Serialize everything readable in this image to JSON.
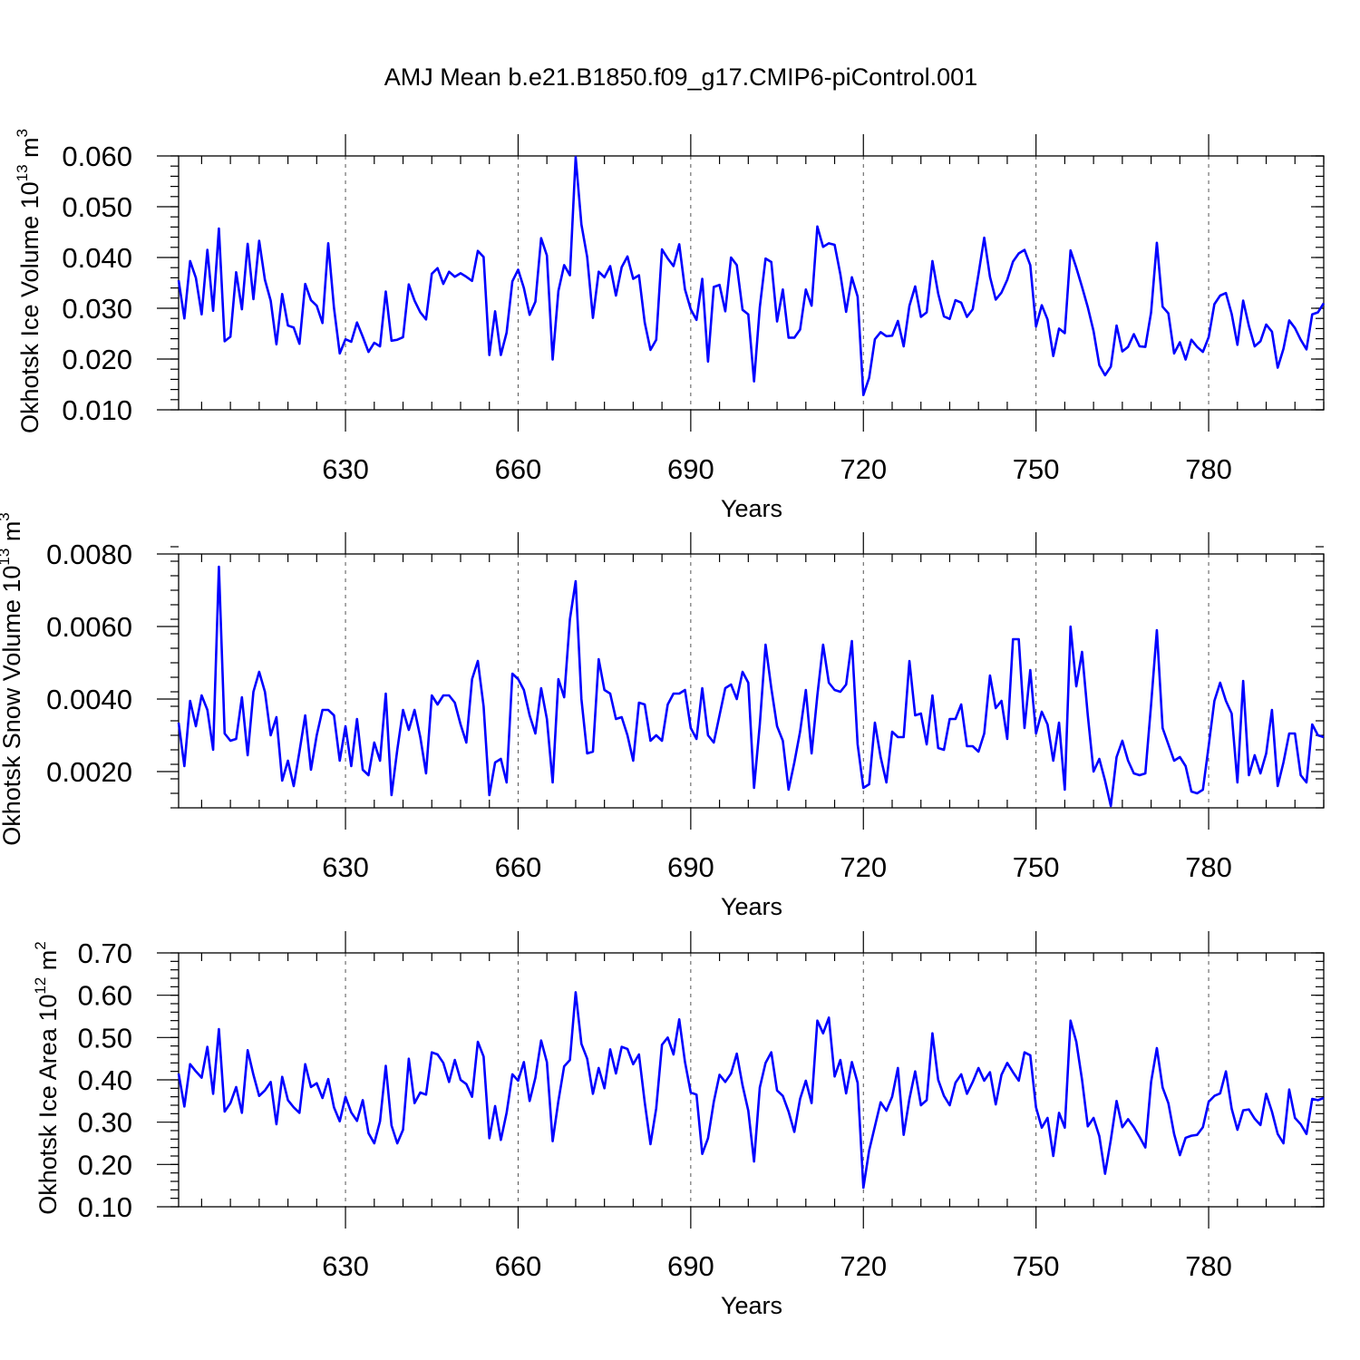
{
  "figure": {
    "title": "AMJ Mean b.e21.B1850.f09_g17.CMIP6-piControl.001"
  },
  "chart_data": [
    {
      "type": "line",
      "title": "AMJ Mean b.e21.B1850.f09_g17.CMIP6-piControl.001",
      "xlabel": "Years",
      "ylabel": {
        "main": "Okhotsk Ice Volume 10",
        "exp": "13",
        "unit": " m",
        "unit_exp": "3"
      },
      "xlim": [
        601,
        800
      ],
      "ylim": [
        0.01,
        0.06
      ],
      "xticks": [
        630,
        660,
        690,
        720,
        750,
        780
      ],
      "xtick_labels": [
        "630",
        "660",
        "690",
        "720",
        "750",
        "780"
      ],
      "yticks": [
        0.01,
        0.02,
        0.03,
        0.04,
        0.05,
        0.06
      ],
      "ytick_labels": [
        "0.010",
        "0.020",
        "0.030",
        "0.040",
        "0.050",
        "0.060"
      ],
      "yminor": 0.002,
      "grid": "dashed vertical at major x ticks",
      "color": "#0000ff",
      "x_start": 601,
      "values": [
        0.0355,
        0.028,
        0.0393,
        0.036,
        0.0288,
        0.0415,
        0.0295,
        0.0457,
        0.0235,
        0.0244,
        0.0371,
        0.0298,
        0.0427,
        0.0318,
        0.0433,
        0.0356,
        0.0315,
        0.0229,
        0.0328,
        0.0266,
        0.0262,
        0.023,
        0.0348,
        0.0316,
        0.0305,
        0.0271,
        0.0428,
        0.0301,
        0.0211,
        0.0239,
        0.0234,
        0.0272,
        0.0244,
        0.0214,
        0.0232,
        0.0225,
        0.0333,
        0.0236,
        0.0238,
        0.0243,
        0.0347,
        0.0315,
        0.0292,
        0.0278,
        0.0368,
        0.0379,
        0.0348,
        0.0372,
        0.0362,
        0.0369,
        0.0362,
        0.0354,
        0.0413,
        0.0401,
        0.0208,
        0.0294,
        0.0208,
        0.0252,
        0.0353,
        0.0376,
        0.034,
        0.0287,
        0.0313,
        0.0438,
        0.0404,
        0.0199,
        0.0334,
        0.0385,
        0.0365,
        0.0598,
        0.0465,
        0.0401,
        0.0281,
        0.0372,
        0.0361,
        0.0383,
        0.0325,
        0.0381,
        0.0402,
        0.0358,
        0.0365,
        0.0272,
        0.0218,
        0.0238,
        0.0416,
        0.0398,
        0.0383,
        0.0426,
        0.0337,
        0.0298,
        0.0277,
        0.0358,
        0.0195,
        0.0342,
        0.0346,
        0.0294,
        0.04,
        0.0385,
        0.0297,
        0.0288,
        0.0156,
        0.0302,
        0.0398,
        0.0391,
        0.0274,
        0.0337,
        0.0242,
        0.0242,
        0.0258,
        0.0337,
        0.0305,
        0.0461,
        0.0421,
        0.0428,
        0.0425,
        0.0367,
        0.0293,
        0.0361,
        0.0323,
        0.0129,
        0.0163,
        0.0239,
        0.0253,
        0.0245,
        0.0246,
        0.0275,
        0.0225,
        0.0305,
        0.0343,
        0.0283,
        0.0292,
        0.0393,
        0.0329,
        0.0284,
        0.0279,
        0.0316,
        0.0311,
        0.0283,
        0.0298,
        0.0367,
        0.0439,
        0.0362,
        0.0317,
        0.0331,
        0.0356,
        0.0392,
        0.0408,
        0.0415,
        0.0385,
        0.0264,
        0.0306,
        0.0278,
        0.0206,
        0.026,
        0.0251,
        0.0414,
        0.038,
        0.0342,
        0.0302,
        0.0255,
        0.0188,
        0.0168,
        0.0185,
        0.0266,
        0.0215,
        0.0224,
        0.0249,
        0.0225,
        0.0224,
        0.0292,
        0.0429,
        0.0303,
        0.029,
        0.0211,
        0.0233,
        0.0199,
        0.0238,
        0.0224,
        0.0214,
        0.0243,
        0.0308,
        0.0325,
        0.033,
        0.0289,
        0.0228,
        0.0315,
        0.0265,
        0.0225,
        0.0235,
        0.0268,
        0.0254,
        0.0183,
        0.022,
        0.0276,
        0.0261,
        0.0238,
        0.0219,
        0.0288,
        0.0292,
        0.031
      ]
    },
    {
      "type": "line",
      "xlabel": "Years",
      "ylabel": {
        "main": "Okhotsk Snow Volume 10",
        "exp": "13",
        "unit": " m",
        "unit_exp": "3"
      },
      "xlim": [
        601,
        800
      ],
      "ylim": [
        0.001,
        0.008
      ],
      "xticks": [
        630,
        660,
        690,
        720,
        750,
        780
      ],
      "xtick_labels": [
        "630",
        "660",
        "690",
        "720",
        "750",
        "780"
      ],
      "yticks": [
        0.002,
        0.004,
        0.006,
        0.008
      ],
      "ytick_labels": [
        "0.0020",
        "0.0040",
        "0.0060",
        "0.0080"
      ],
      "yminor": 0.0004,
      "grid": "dashed vertical at major x ticks",
      "color": "#0000ff",
      "x_start": 601,
      "values": [
        0.00335,
        0.00215,
        0.00395,
        0.00325,
        0.0041,
        0.0037,
        0.0026,
        0.00765,
        0.00305,
        0.00285,
        0.0029,
        0.00405,
        0.00245,
        0.0042,
        0.00475,
        0.0042,
        0.003,
        0.0035,
        0.00175,
        0.0023,
        0.0016,
        0.00255,
        0.00355,
        0.00205,
        0.003,
        0.0037,
        0.0037,
        0.00355,
        0.0023,
        0.00325,
        0.00215,
        0.00345,
        0.00205,
        0.0019,
        0.0028,
        0.0023,
        0.00415,
        0.00135,
        0.0026,
        0.0037,
        0.00315,
        0.0037,
        0.00295,
        0.00195,
        0.0041,
        0.00385,
        0.0041,
        0.0041,
        0.0039,
        0.0033,
        0.0028,
        0.00455,
        0.00505,
        0.0038,
        0.00135,
        0.00225,
        0.00235,
        0.0017,
        0.0047,
        0.00455,
        0.00425,
        0.00355,
        0.00305,
        0.0043,
        0.00345,
        0.0017,
        0.00455,
        0.00405,
        0.0062,
        0.00725,
        0.004,
        0.0025,
        0.00255,
        0.0051,
        0.00425,
        0.00415,
        0.00345,
        0.0035,
        0.003,
        0.0023,
        0.0039,
        0.00385,
        0.00285,
        0.003,
        0.00285,
        0.00385,
        0.00415,
        0.00415,
        0.00425,
        0.0032,
        0.0029,
        0.0043,
        0.003,
        0.0028,
        0.00355,
        0.0043,
        0.0044,
        0.004,
        0.00475,
        0.00445,
        0.00155,
        0.0033,
        0.0055,
        0.0043,
        0.00325,
        0.00285,
        0.0015,
        0.00225,
        0.0031,
        0.00425,
        0.0025,
        0.0041,
        0.0055,
        0.00445,
        0.00425,
        0.0042,
        0.0044,
        0.0056,
        0.00275,
        0.00155,
        0.00165,
        0.00335,
        0.0024,
        0.0017,
        0.0031,
        0.00295,
        0.00295,
        0.00505,
        0.00355,
        0.0036,
        0.00275,
        0.0041,
        0.00265,
        0.0026,
        0.00345,
        0.00345,
        0.00385,
        0.0027,
        0.0027,
        0.00255,
        0.00305,
        0.00465,
        0.00375,
        0.00395,
        0.0029,
        0.00565,
        0.00565,
        0.0032,
        0.0048,
        0.00305,
        0.00365,
        0.0033,
        0.0023,
        0.00335,
        0.0015,
        0.006,
        0.00435,
        0.0053,
        0.00355,
        0.002,
        0.00235,
        0.00175,
        0.00105,
        0.0024,
        0.00285,
        0.0023,
        0.00195,
        0.0019,
        0.00195,
        0.00385,
        0.0059,
        0.0032,
        0.00275,
        0.0023,
        0.0024,
        0.00215,
        0.00145,
        0.0014,
        0.0015,
        0.0027,
        0.00395,
        0.00445,
        0.00395,
        0.0036,
        0.0017,
        0.0045,
        0.0019,
        0.00245,
        0.00195,
        0.0025,
        0.0037,
        0.0016,
        0.00225,
        0.00305,
        0.00305,
        0.0019,
        0.0017,
        0.0033,
        0.003,
        0.00295
      ]
    },
    {
      "type": "line",
      "xlabel": "Years",
      "ylabel": {
        "main": "Okhotsk Ice Area 10",
        "exp": "12",
        "unit": " m",
        "unit_exp": "2"
      },
      "xlim": [
        601,
        800
      ],
      "ylim": [
        0.1,
        0.7
      ],
      "xticks": [
        630,
        660,
        690,
        720,
        750,
        780
      ],
      "xtick_labels": [
        "630",
        "660",
        "690",
        "720",
        "750",
        "780"
      ],
      "yticks": [
        0.1,
        0.2,
        0.3,
        0.4,
        0.5,
        0.6,
        0.7
      ],
      "ytick_labels": [
        "0.10",
        "0.20",
        "0.30",
        "0.40",
        "0.50",
        "0.60",
        "0.70"
      ],
      "yminor": 0.02,
      "grid": "dashed vertical at major x ticks",
      "color": "#0000ff",
      "x_start": 601,
      "values": [
        0.415,
        0.337,
        0.437,
        0.42,
        0.405,
        0.478,
        0.367,
        0.52,
        0.325,
        0.345,
        0.383,
        0.322,
        0.47,
        0.412,
        0.362,
        0.375,
        0.395,
        0.295,
        0.407,
        0.352,
        0.335,
        0.322,
        0.437,
        0.383,
        0.392,
        0.357,
        0.402,
        0.335,
        0.302,
        0.36,
        0.323,
        0.303,
        0.352,
        0.274,
        0.25,
        0.302,
        0.433,
        0.292,
        0.25,
        0.282,
        0.45,
        0.345,
        0.37,
        0.365,
        0.465,
        0.46,
        0.44,
        0.395,
        0.447,
        0.4,
        0.39,
        0.36,
        0.49,
        0.455,
        0.262,
        0.338,
        0.258,
        0.322,
        0.413,
        0.398,
        0.442,
        0.35,
        0.405,
        0.493,
        0.442,
        0.255,
        0.35,
        0.432,
        0.447,
        0.607,
        0.485,
        0.45,
        0.367,
        0.428,
        0.38,
        0.472,
        0.415,
        0.478,
        0.473,
        0.437,
        0.46,
        0.347,
        0.248,
        0.333,
        0.483,
        0.5,
        0.46,
        0.543,
        0.442,
        0.37,
        0.365,
        0.225,
        0.262,
        0.348,
        0.412,
        0.395,
        0.415,
        0.462,
        0.387,
        0.327,
        0.207,
        0.382,
        0.44,
        0.465,
        0.375,
        0.362,
        0.325,
        0.277,
        0.355,
        0.398,
        0.345,
        0.54,
        0.51,
        0.547,
        0.408,
        0.447,
        0.368,
        0.442,
        0.393,
        0.145,
        0.233,
        0.29,
        0.347,
        0.327,
        0.36,
        0.428,
        0.27,
        0.355,
        0.42,
        0.34,
        0.352,
        0.51,
        0.4,
        0.362,
        0.34,
        0.393,
        0.413,
        0.367,
        0.395,
        0.428,
        0.398,
        0.418,
        0.342,
        0.412,
        0.44,
        0.418,
        0.398,
        0.465,
        0.458,
        0.335,
        0.287,
        0.31,
        0.22,
        0.322,
        0.287,
        0.54,
        0.49,
        0.4,
        0.29,
        0.31,
        0.267,
        0.178,
        0.258,
        0.35,
        0.288,
        0.307,
        0.288,
        0.265,
        0.24,
        0.395,
        0.475,
        0.382,
        0.345,
        0.272,
        0.222,
        0.263,
        0.268,
        0.27,
        0.288,
        0.348,
        0.362,
        0.368,
        0.42,
        0.332,
        0.282,
        0.328,
        0.33,
        0.308,
        0.293,
        0.367,
        0.325,
        0.272,
        0.25,
        0.377,
        0.31,
        0.295,
        0.272,
        0.355,
        0.352,
        0.357
      ]
    }
  ]
}
